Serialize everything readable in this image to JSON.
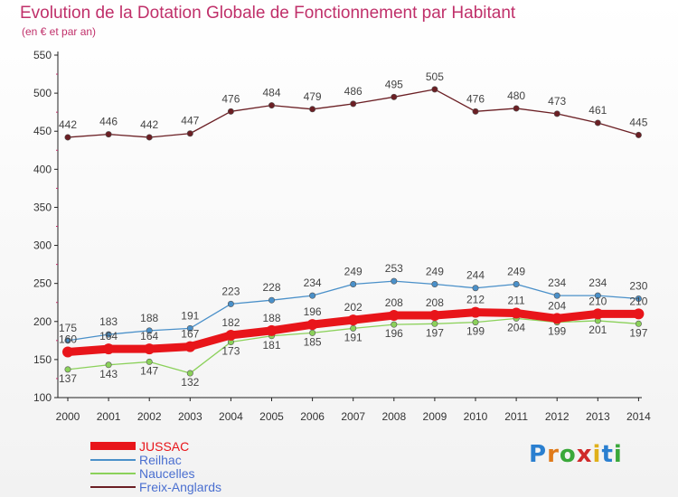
{
  "title": "Evolution de la Dotation Globale de Fonctionnement par Habitant",
  "subtitle": "(en € et par an)",
  "logo": {
    "text": "Proxiti",
    "colors": [
      "#2a7fd0",
      "#e07a1a",
      "#3aa83a",
      "#d02a2a",
      "#e0b01a",
      "#2a7fd0",
      "#3aa83a"
    ]
  },
  "chart_data": {
    "type": "line",
    "x": [
      "2000",
      "2001",
      "2002",
      "2003",
      "2004",
      "2005",
      "2006",
      "2007",
      "2008",
      "2009",
      "2010",
      "2011",
      "2012",
      "2013",
      "2014"
    ],
    "ylim": [
      100,
      550
    ],
    "yticks": [
      100,
      150,
      200,
      250,
      300,
      350,
      400,
      450,
      500,
      550
    ],
    "grid": false,
    "legend": "bottom-left",
    "series": [
      {
        "name": "JUSSAC",
        "color": "#e8151a",
        "values": [
          160,
          164,
          164,
          167,
          182,
          188,
          196,
          202,
          208,
          208,
          212,
          211,
          204,
          210,
          210
        ]
      },
      {
        "name": "Reilhac",
        "color": "#4a90c9",
        "values": [
          175,
          183,
          188,
          191,
          223,
          228,
          234,
          249,
          253,
          249,
          244,
          249,
          234,
          234,
          230
        ]
      },
      {
        "name": "Naucelles",
        "color": "#8bd15a",
        "values": [
          137,
          143,
          147,
          132,
          173,
          181,
          185,
          191,
          196,
          197,
          199,
          204,
          199,
          201,
          197
        ]
      },
      {
        "name": "Freix-Anglards",
        "color": "#6b1f24",
        "values": [
          442,
          446,
          442,
          447,
          476,
          484,
          479,
          486,
          495,
          505,
          476,
          480,
          473,
          461,
          445
        ]
      }
    ]
  }
}
